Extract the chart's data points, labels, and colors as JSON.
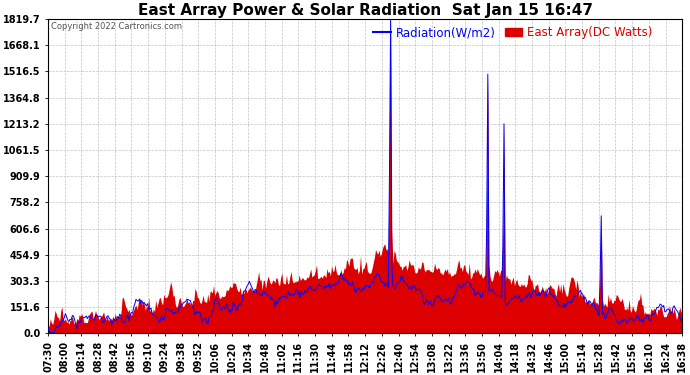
{
  "title": "East Array Power & Solar Radiation  Sat Jan 15 16:47",
  "copyright": "Copyright 2022 Cartronics.com",
  "legend_radiation": "Radiation(W/m2)",
  "legend_array": "East Array(DC Watts)",
  "radiation_color": "#0000ff",
  "array_color": "#dd0000",
  "ymin": 0.0,
  "ymax": 1819.7,
  "yticks": [
    0.0,
    151.6,
    303.3,
    454.9,
    606.6,
    758.2,
    909.9,
    1061.5,
    1213.2,
    1364.8,
    1516.5,
    1668.1,
    1819.7
  ],
  "xtick_labels": [
    "07:30",
    "08:00",
    "08:14",
    "08:28",
    "08:42",
    "08:56",
    "09:10",
    "09:24",
    "09:38",
    "09:52",
    "10:06",
    "10:20",
    "10:34",
    "10:48",
    "11:02",
    "11:16",
    "11:30",
    "11:44",
    "11:58",
    "12:12",
    "12:26",
    "12:40",
    "12:54",
    "13:08",
    "13:22",
    "13:36",
    "13:50",
    "14:04",
    "14:18",
    "14:32",
    "14:46",
    "15:00",
    "15:14",
    "15:28",
    "15:42",
    "15:56",
    "16:10",
    "16:24",
    "16:38"
  ],
  "background_color": "#ffffff",
  "grid_color": "#aaaaaa",
  "title_fontsize": 11,
  "axis_fontsize": 7,
  "legend_fontsize": 8.5,
  "figsize": [
    6.9,
    3.75
  ],
  "dpi": 100
}
